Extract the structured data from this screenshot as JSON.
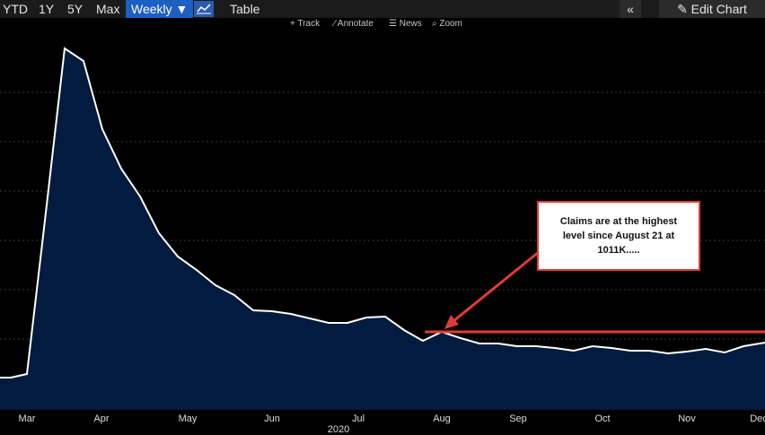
{
  "toolbar": {
    "range_buttons": [
      "YTD",
      "1Y",
      "5Y",
      "Max"
    ],
    "frequency": "Weekly ▼",
    "table_label": "Table",
    "collapse_label": "«",
    "edit_label": "✎ Edit Chart"
  },
  "subtoolbar": {
    "track": "+ Track",
    "annotate": "⁄ Annotate",
    "news": "☰ News",
    "zoom": "⌕ Zoom"
  },
  "colors": {
    "area_fill": "#031b3e",
    "line": "#ffffff",
    "annotation": "#e23b3b",
    "grid": "#3a3a3a"
  },
  "chart_data": {
    "type": "area",
    "title": "",
    "xlabel": "2020",
    "ylabel": "",
    "x_ticks": [
      "Mar",
      "Apr",
      "May",
      "Jun",
      "Jul",
      "Aug",
      "Sep",
      "Oct",
      "Nov",
      "Dec"
    ],
    "y_tick_labels_visible": false,
    "grid": true,
    "annotation": {
      "text": "Claims are at the highest level since August 21 at 1011K.....",
      "level": 1011
    }
  }
}
